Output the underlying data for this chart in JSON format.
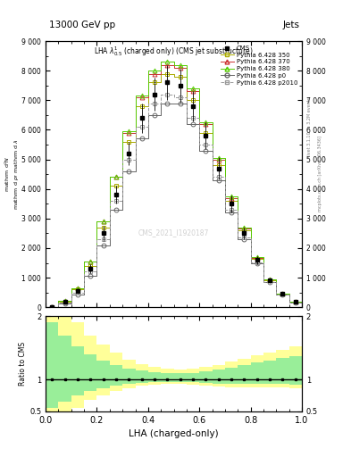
{
  "title_top": "13000 GeV pp",
  "title_right": "Jets",
  "xlabel": "LHA (charged-only)",
  "ylabel_ratio": "Ratio to CMS",
  "watermark": "CMS_2021_I1920187",
  "rivet_label": "Rivet 3.1.10, ≥ 3.2M events",
  "mcplots_label": "mcplots.cern.ch [arXiv:1306.3436]",
  "x_bins": [
    0.0,
    0.05,
    0.1,
    0.15,
    0.2,
    0.25,
    0.3,
    0.35,
    0.4,
    0.45,
    0.5,
    0.55,
    0.6,
    0.65,
    0.7,
    0.75,
    0.8,
    0.85,
    0.9,
    0.95,
    1.0
  ],
  "cms_data": [
    0.0,
    0.18,
    0.55,
    1.3,
    2.5,
    3.8,
    5.2,
    6.4,
    7.2,
    7.6,
    7.5,
    6.8,
    5.8,
    4.7,
    3.5,
    2.5,
    1.6,
    0.9,
    0.45,
    0.18
  ],
  "cms_err": [
    0.0,
    0.03,
    0.08,
    0.15,
    0.25,
    0.3,
    0.4,
    0.5,
    0.55,
    0.6,
    0.58,
    0.52,
    0.45,
    0.38,
    0.28,
    0.2,
    0.13,
    0.08,
    0.04,
    0.02
  ],
  "py350_data": [
    0.0,
    0.2,
    0.6,
    1.4,
    2.7,
    4.1,
    5.6,
    6.8,
    7.6,
    7.9,
    7.8,
    7.0,
    5.9,
    4.8,
    3.6,
    2.6,
    1.65,
    0.92,
    0.45,
    0.18
  ],
  "py370_data": [
    0.0,
    0.22,
    0.65,
    1.55,
    2.9,
    4.4,
    5.9,
    7.1,
    7.9,
    8.2,
    8.1,
    7.3,
    6.2,
    5.0,
    3.7,
    2.65,
    1.68,
    0.93,
    0.46,
    0.18
  ],
  "py380_data": [
    0.0,
    0.22,
    0.65,
    1.55,
    2.9,
    4.4,
    5.95,
    7.15,
    8.0,
    8.3,
    8.2,
    7.4,
    6.25,
    5.05,
    3.75,
    2.68,
    1.7,
    0.94,
    0.46,
    0.18
  ],
  "pyp0_data": [
    0.0,
    0.13,
    0.42,
    1.05,
    2.1,
    3.3,
    4.6,
    5.7,
    6.5,
    6.9,
    6.9,
    6.2,
    5.3,
    4.3,
    3.2,
    2.3,
    1.5,
    0.84,
    0.42,
    0.17
  ],
  "pyp2010_data": [
    0.0,
    0.16,
    0.5,
    1.2,
    2.3,
    3.6,
    5.0,
    6.1,
    6.9,
    7.2,
    7.1,
    6.4,
    5.5,
    4.4,
    3.3,
    2.37,
    1.52,
    0.86,
    0.43,
    0.17
  ],
  "ratio_yellow_lo": [
    0.3,
    0.4,
    0.55,
    0.68,
    0.75,
    0.82,
    0.87,
    0.9,
    0.92,
    0.93,
    0.93,
    0.92,
    0.9,
    0.89,
    0.88,
    0.88,
    0.88,
    0.88,
    0.88,
    0.87
  ],
  "ratio_yellow_hi": [
    2.5,
    2.2,
    1.9,
    1.7,
    1.55,
    1.42,
    1.32,
    1.25,
    1.2,
    1.17,
    1.16,
    1.17,
    1.2,
    1.23,
    1.28,
    1.33,
    1.38,
    1.42,
    1.47,
    1.52
  ],
  "ratio_green_lo": [
    0.55,
    0.65,
    0.75,
    0.82,
    0.87,
    0.9,
    0.93,
    0.95,
    0.96,
    0.965,
    0.965,
    0.96,
    0.95,
    0.94,
    0.93,
    0.93,
    0.93,
    0.93,
    0.93,
    0.92
  ],
  "ratio_green_hi": [
    1.9,
    1.7,
    1.52,
    1.4,
    1.3,
    1.23,
    1.18,
    1.15,
    1.12,
    1.1,
    1.1,
    1.11,
    1.13,
    1.16,
    1.19,
    1.23,
    1.27,
    1.3,
    1.34,
    1.37
  ],
  "color_350": "#aaaa00",
  "color_370": "#cc3333",
  "color_380": "#55cc00",
  "color_p0": "#666666",
  "color_p2010": "#999999",
  "ylim_main": [
    0,
    9.0
  ],
  "ylim_ratio": [
    0.5,
    2.0
  ],
  "xlim": [
    0.0,
    1.0
  ],
  "yticks_main": [
    0,
    1,
    2,
    3,
    4,
    5,
    6,
    7,
    8,
    9
  ],
  "ytick_labels_main": [
    "0",
    "1 000",
    "2 000",
    "3 000",
    "4 000",
    "5 000",
    "6 000",
    "7 000",
    "8 000",
    "9 000"
  ]
}
